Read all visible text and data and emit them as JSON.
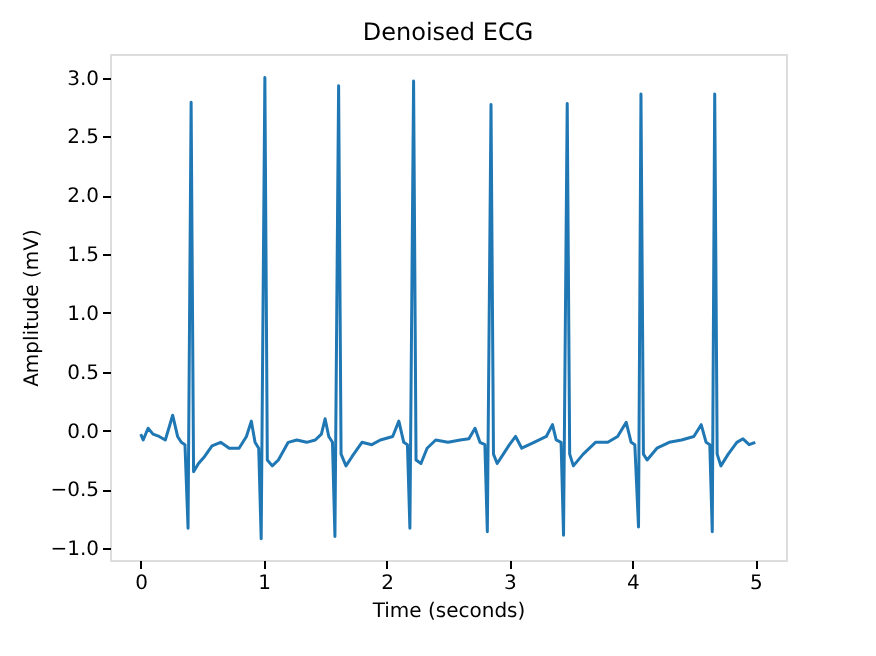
{
  "chart_data": {
    "type": "line",
    "title": "Denoised ECG",
    "xlabel": "Time (seconds)",
    "ylabel": "Amplitude (mV)",
    "xlim": [
      -0.25,
      5.25
    ],
    "ylim": [
      -1.1,
      3.2
    ],
    "xticks": [
      0,
      1,
      2,
      3,
      4,
      5
    ],
    "yticks": [
      {
        "value": -1,
        "label": "−1.0"
      },
      {
        "value": -0.5,
        "label": "−0.5"
      },
      {
        "value": 0,
        "label": "0.0"
      },
      {
        "value": 0.5,
        "label": "0.5"
      },
      {
        "value": 1,
        "label": "1.0"
      },
      {
        "value": 1.5,
        "label": "1.5"
      },
      {
        "value": 2,
        "label": "2.0"
      },
      {
        "value": 2.5,
        "label": "2.5"
      },
      {
        "value": 3,
        "label": "3.0"
      }
    ],
    "grid": false,
    "legend": false,
    "series": [
      {
        "color": "#1f77b4",
        "x": [
          0,
          0.02,
          0.06,
          0.1,
          0.15,
          0.2,
          0.26,
          0.3,
          0.33,
          0.36,
          0.385,
          0.41,
          0.43,
          0.47,
          0.52,
          0.58,
          0.65,
          0.72,
          0.8,
          0.86,
          0.9,
          0.93,
          0.96,
          0.98,
          1.01,
          1.03,
          1.07,
          1.12,
          1.2,
          1.27,
          1.35,
          1.42,
          1.47,
          1.5,
          1.53,
          1.56,
          1.58,
          1.61,
          1.63,
          1.67,
          1.72,
          1.8,
          1.88,
          1.95,
          2.05,
          2.1,
          2.14,
          2.17,
          2.19,
          2.22,
          2.24,
          2.28,
          2.33,
          2.4,
          2.5,
          2.6,
          2.67,
          2.72,
          2.76,
          2.8,
          2.82,
          2.85,
          2.87,
          2.9,
          2.95,
          3.0,
          3.05,
          3.1,
          3.2,
          3.3,
          3.35,
          3.38,
          3.42,
          3.44,
          3.47,
          3.49,
          3.52,
          3.6,
          3.7,
          3.8,
          3.88,
          3.95,
          3.99,
          4.02,
          4.05,
          4.07,
          4.09,
          4.12,
          4.2,
          4.3,
          4.4,
          4.5,
          4.56,
          4.6,
          4.63,
          4.65,
          4.67,
          4.69,
          4.72,
          4.78,
          4.85,
          4.9,
          4.95,
          5.0
        ],
        "values": [
          -0.03,
          -0.08,
          0.02,
          -0.03,
          -0.05,
          -0.08,
          0.13,
          -0.05,
          -0.1,
          -0.12,
          -0.83,
          2.79,
          -0.35,
          -0.28,
          -0.22,
          -0.13,
          -0.1,
          -0.15,
          -0.15,
          -0.05,
          0.08,
          -0.1,
          -0.15,
          -0.92,
          3.0,
          -0.25,
          -0.3,
          -0.25,
          -0.1,
          -0.08,
          -0.1,
          -0.08,
          -0.03,
          0.1,
          -0.05,
          -0.1,
          -0.9,
          2.93,
          -0.2,
          -0.3,
          -0.22,
          -0.1,
          -0.12,
          -0.08,
          -0.05,
          0.08,
          -0.1,
          -0.12,
          -0.83,
          2.97,
          -0.25,
          -0.28,
          -0.15,
          -0.08,
          -0.1,
          -0.08,
          -0.07,
          0.02,
          -0.1,
          -0.12,
          -0.86,
          2.77,
          -0.2,
          -0.28,
          -0.2,
          -0.12,
          -0.05,
          -0.15,
          -0.1,
          -0.05,
          0.05,
          -0.08,
          -0.1,
          -0.89,
          2.78,
          -0.2,
          -0.3,
          -0.2,
          -0.1,
          -0.1,
          -0.05,
          0.07,
          -0.1,
          -0.12,
          -0.82,
          2.86,
          -0.2,
          -0.25,
          -0.15,
          -0.1,
          -0.08,
          -0.05,
          0.05,
          -0.1,
          -0.12,
          -0.86,
          2.86,
          -0.2,
          -0.3,
          -0.2,
          -0.1,
          -0.07,
          -0.12,
          -0.1
        ]
      }
    ]
  }
}
